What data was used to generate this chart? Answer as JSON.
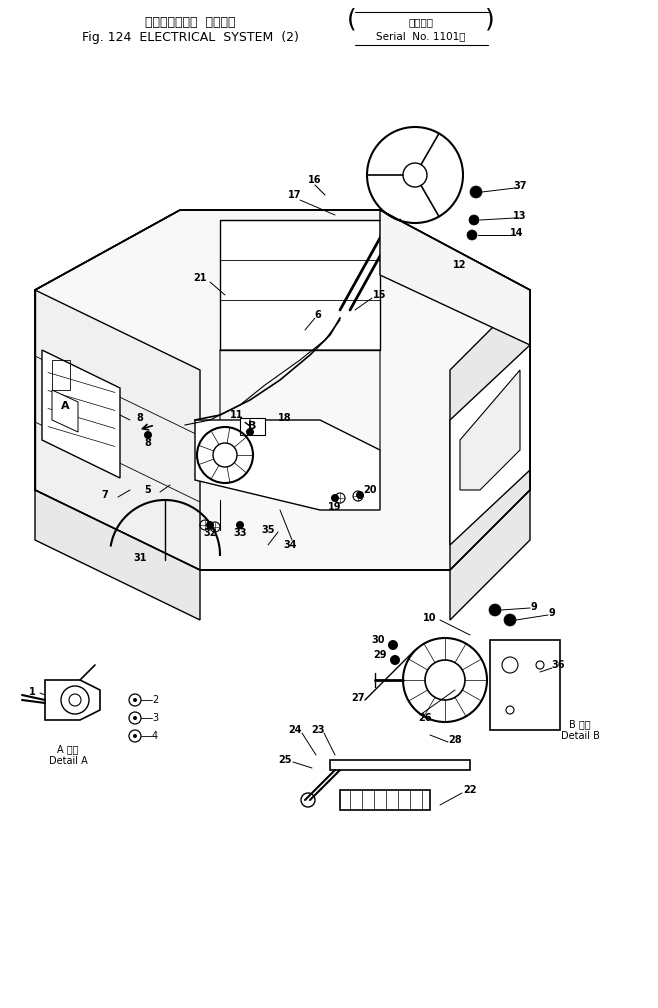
{
  "title_line1": "エレクトリカル  システム",
  "title_line2": "Fig. 124  ELECTRICAL  SYSTEM  (2)",
  "serial_line1": "適用号機",
  "serial_line2": "Serial  No. 1101～",
  "bg_color": "#ffffff",
  "lc": "#000000",
  "detail_a": "A 詳細\nDetail A",
  "detail_b": "B 詳細\nDetail B",
  "figsize": [
    6.58,
    10.08
  ],
  "dpi": 100
}
